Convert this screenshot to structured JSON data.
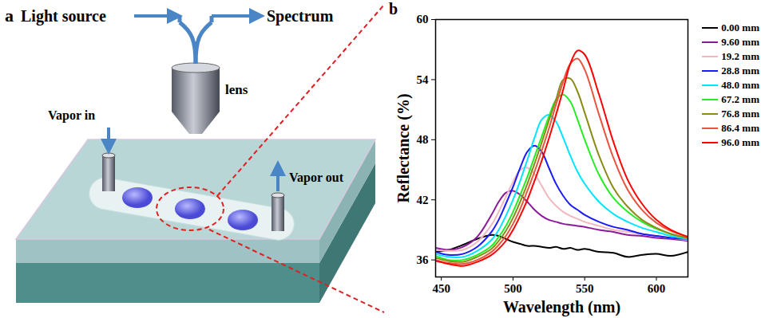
{
  "diagram": {
    "panel_label": "a",
    "light_source": "Light source",
    "spectrum": "Spectrum",
    "lens": "lens",
    "vapor_in": "Vapor in",
    "vapor_out": "Vapor out"
  },
  "chart_panel_label": "b",
  "chart_data": {
    "type": "line",
    "x_label": "Wavelength (nm)",
    "y_label": "Reflectance (%)",
    "xlim": [
      446,
      622
    ],
    "xticks": [
      450,
      500,
      550,
      600
    ],
    "ylim": [
      34.3,
      60
    ],
    "yticks": [
      36,
      42,
      48,
      54,
      60
    ],
    "grid": false,
    "legend": "right",
    "x": [
      446,
      455,
      465,
      475,
      485,
      490,
      495,
      500,
      505,
      510,
      515,
      520,
      525,
      530,
      535,
      540,
      545,
      550,
      560,
      570,
      580,
      590,
      600,
      610,
      622
    ],
    "series": [
      {
        "name": "0.00 mm",
        "color": "#000000",
        "values": [
          36.8,
          37.0,
          37.5,
          38.1,
          38.5,
          38.4,
          38.1,
          37.8,
          37.6,
          37.4,
          37.4,
          37.3,
          37.2,
          37.3,
          37.1,
          37.2,
          37.0,
          37.1,
          36.8,
          36.7,
          36.3,
          36.5,
          36.6,
          36.4,
          36.8
        ]
      },
      {
        "name": "9.60 mm",
        "color": "#8b1a9b",
        "values": [
          37.2,
          37.0,
          37.3,
          38.3,
          40.5,
          41.8,
          42.7,
          42.9,
          42.5,
          41.8,
          41.0,
          40.4,
          40.0,
          39.8,
          39.6,
          39.5,
          39.4,
          39.3,
          39.0,
          38.8,
          38.5,
          38.4,
          38.2,
          38.1,
          37.9
        ]
      },
      {
        "name": "19.2 mm",
        "color": "#f2b8c0",
        "values": [
          37.0,
          36.9,
          37.0,
          37.8,
          39.5,
          40.8,
          42.3,
          43.8,
          45.0,
          45.2,
          44.6,
          43.4,
          42.2,
          41.4,
          40.8,
          40.4,
          40.1,
          39.8,
          39.4,
          39.0,
          38.8,
          38.6,
          38.4,
          38.2,
          38.0
        ]
      },
      {
        "name": "28.8 mm",
        "color": "#1a1aff",
        "values": [
          36.8,
          36.5,
          36.6,
          37.3,
          38.8,
          40.0,
          41.6,
          43.3,
          45.2,
          46.8,
          47.4,
          46.8,
          45.2,
          43.6,
          42.4,
          41.5,
          41.0,
          40.5,
          39.8,
          39.3,
          39.0,
          38.6,
          38.4,
          38.2,
          38.1
        ]
      },
      {
        "name": "48.0 mm",
        "color": "#00e5ff",
        "values": [
          36.6,
          36.3,
          36.3,
          36.9,
          38.0,
          39.0,
          40.4,
          42.0,
          43.9,
          46.0,
          48.2,
          50.0,
          50.5,
          49.8,
          48.2,
          46.4,
          44.8,
          43.6,
          41.8,
          40.6,
          39.8,
          39.2,
          38.8,
          38.4,
          38.1
        ]
      },
      {
        "name": "67.2 mm",
        "color": "#22ee22",
        "values": [
          36.4,
          36.0,
          36.0,
          36.5,
          37.4,
          38.3,
          39.4,
          40.8,
          42.5,
          44.3,
          46.3,
          48.3,
          50.3,
          52.0,
          52.5,
          51.8,
          50.0,
          48.0,
          44.5,
          42.2,
          40.8,
          39.8,
          39.1,
          38.6,
          38.2
        ]
      },
      {
        "name": "76.8 mm",
        "color": "#8b8b1a",
        "values": [
          36.2,
          35.9,
          35.8,
          36.3,
          37.1,
          37.9,
          38.9,
          40.2,
          41.8,
          43.6,
          45.6,
          47.7,
          49.9,
          52.0,
          54.0,
          54.1,
          52.8,
          50.7,
          46.4,
          43.2,
          41.3,
          40.0,
          39.2,
          38.6,
          38.2
        ]
      },
      {
        "name": "86.4 mm",
        "color": "#e8553f",
        "values": [
          36.0,
          35.7,
          35.6,
          36.0,
          36.8,
          37.5,
          38.4,
          39.6,
          41.1,
          42.9,
          44.8,
          46.9,
          49.1,
          51.5,
          53.8,
          55.6,
          56.1,
          55.0,
          50.5,
          46.2,
          43.0,
          41.0,
          39.7,
          38.9,
          38.3
        ]
      },
      {
        "name": "96.0 mm",
        "color": "#ff0000",
        "values": [
          35.9,
          35.6,
          35.4,
          35.8,
          36.5,
          37.1,
          37.9,
          39.0,
          40.4,
          42.0,
          43.9,
          45.9,
          48.1,
          50.5,
          53.0,
          55.6,
          56.9,
          56.5,
          52.5,
          47.8,
          44.0,
          41.6,
          40.0,
          39.0,
          38.3
        ]
      }
    ]
  }
}
